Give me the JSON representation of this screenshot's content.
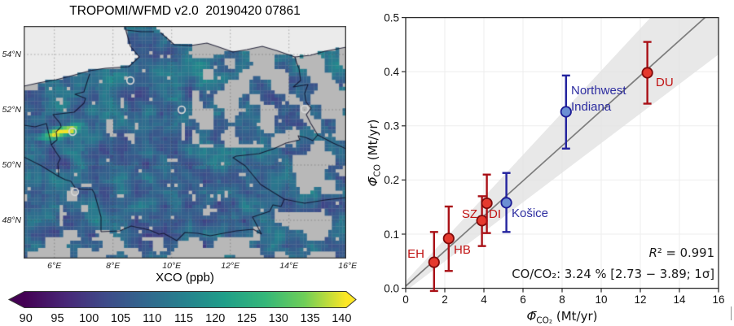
{
  "chart_data": [
    {
      "type": "heatmap",
      "title": "TROPOMI/WFMD v2.0  20190420 07861",
      "variable": "XCO",
      "colorbar_label": "XCO (ppb)",
      "colorbar_ticks": [
        90,
        95,
        100,
        105,
        110,
        115,
        120,
        125,
        130,
        135,
        140
      ],
      "colorbar_range": [
        90,
        140
      ],
      "colormap": "viridis",
      "lon_ticks": [
        "6°E",
        "8°E",
        "10°E",
        "12°E",
        "14°E",
        "16°E"
      ],
      "lat_ticks": [
        "54°N",
        "52°N",
        "50°N",
        "48°N"
      ],
      "map_extent": {
        "lon_min": 5.0,
        "lon_max": 16.0,
        "lat_min": 46.6,
        "lat_max": 55.0
      },
      "hotspot": {
        "lon": 6.6,
        "lat": 51.35,
        "value_ppb": 140
      },
      "site_markers": [
        "HB",
        "SZ",
        "EH",
        "DU",
        "DI"
      ]
    },
    {
      "type": "scatter",
      "x_label_parts": {
        "phi": "Φ̄",
        "sub": "CO₂",
        "rest": " (Mt/yr)"
      },
      "y_label_parts": {
        "phi": "Φ̄",
        "sub": "CO",
        "rest": " (Mt/yr)"
      },
      "xlim": [
        0,
        16
      ],
      "ylim": [
        0,
        0.5
      ],
      "x_ticks": [
        0,
        2,
        4,
        6,
        8,
        10,
        12,
        14,
        16
      ],
      "y_ticks": [
        0.0,
        0.1,
        0.2,
        0.3,
        0.4,
        0.5
      ],
      "points": [
        {
          "id": "EH",
          "label": "EH",
          "group": "red",
          "x": 1.45,
          "y": 0.048,
          "y_lo": -0.005,
          "y_hi": 0.104
        },
        {
          "id": "HB",
          "label": "HB",
          "group": "red",
          "x": 2.2,
          "y": 0.092,
          "y_lo": 0.032,
          "y_hi": 0.151
        },
        {
          "id": "SZ",
          "label": "SZ",
          "group": "red",
          "x": 3.9,
          "y": 0.125,
          "y_lo": 0.078,
          "y_hi": 0.17
        },
        {
          "id": "DI",
          "label": "DI",
          "group": "red",
          "x": 4.15,
          "y": 0.157,
          "y_lo": 0.102,
          "y_hi": 0.21
        },
        {
          "id": "KOSICE",
          "label": "Košice",
          "group": "blue",
          "x": 5.15,
          "y": 0.158,
          "y_lo": 0.104,
          "y_hi": 0.213
        },
        {
          "id": "NWI",
          "label": "Northwest Indiana",
          "label_lines": [
            "Northwest",
            "Indiana"
          ],
          "group": "blue",
          "x": 8.2,
          "y": 0.326,
          "y_lo": 0.258,
          "y_hi": 0.393
        },
        {
          "id": "DU",
          "label": "DU",
          "group": "red",
          "x": 12.36,
          "y": 0.398,
          "y_lo": 0.341,
          "y_hi": 0.455
        }
      ],
      "fit": {
        "slope_percent": 3.24,
        "ci_percent": [
          2.73,
          3.89
        ],
        "intercept": 0.004,
        "r_squared": 0.991
      },
      "annotations": {
        "r_squared_text": "R² = 0.991",
        "ratio_text": "CO/CO₂:  3.24 % [2.73 − 3.89; 1σ]"
      },
      "colors": {
        "red_fill": "#e5392e",
        "red_edge": "#7e0b0b",
        "red_bar": "#a91016",
        "red_label": "#c01212",
        "blue_fill": "#6b8fd4",
        "blue_edge": "#1c1c96",
        "blue_bar": "#23239e",
        "blue_label": "#2d2da0",
        "fit_line": "#7d7d7d",
        "band": "#e2e2e2",
        "grid": "#ededed",
        "frame": "#2b2b2b"
      }
    }
  ]
}
